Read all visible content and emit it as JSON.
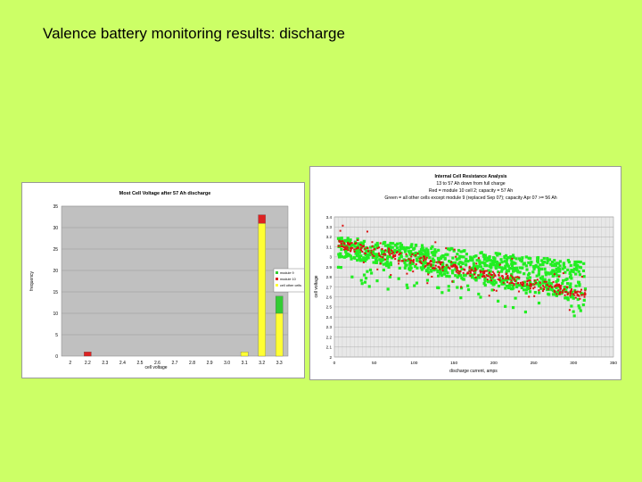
{
  "slide": {
    "title": "Valence battery monitoring results: discharge"
  },
  "chart_data": [
    {
      "type": "bar",
      "stacked": true,
      "title": "Most Cell Voltage after 57 Ah discharge",
      "xlabel": "cell voltage",
      "ylabel": "frequency",
      "categories": [
        "2",
        "2.2",
        "2.3",
        "2.4",
        "2.5",
        "2.6",
        "2.7",
        "2.8",
        "2.9",
        "3.0",
        "3.1",
        "3.2",
        "3.3"
      ],
      "ylim": [
        0,
        35
      ],
      "yticks": [
        "0",
        "5",
        "10",
        "15",
        "20",
        "25",
        "30",
        "35"
      ],
      "grid": true,
      "legend": "right",
      "series": [
        {
          "name": "cell other cells",
          "color": "#ffff33",
          "values": [
            0,
            0,
            0,
            0,
            0,
            0,
            0,
            0,
            0,
            0,
            1,
            31,
            10
          ]
        },
        {
          "name": "module 10",
          "color": "#dd2222",
          "values": [
            0,
            1,
            0,
            0,
            0,
            0,
            0,
            0,
            0,
            0,
            0,
            2,
            0
          ]
        },
        {
          "name": "module 9",
          "color": "#33cc33",
          "values": [
            0,
            0,
            0,
            0,
            0,
            0,
            0,
            0,
            0,
            0,
            0,
            0,
            4
          ]
        }
      ],
      "colors": {
        "plot_bg": "#c0c0c0",
        "frame_bg": "#ffffff"
      }
    },
    {
      "type": "scatter",
      "title_lines": [
        "Internal Cell Resistance Analysis",
        "13 to 57 Ah down from full charge",
        "Red = module 10 cell 2; capacity = 57 Ah",
        "Green = all other cells except module 9 (replaced Sep 07); capacity Apr 07 >= 56 Ah"
      ],
      "xlabel": "discharge current, amps",
      "ylabel": "cell voltage",
      "xlim": [
        0,
        350
      ],
      "ylim": [
        2.0,
        3.4
      ],
      "xticks": [
        "0",
        "50",
        "100",
        "150",
        "200",
        "250",
        "300",
        "350"
      ],
      "yticks": [
        "2",
        "2.1",
        "2.2",
        "2.3",
        "2.4",
        "2.5",
        "2.6",
        "2.7",
        "2.8",
        "2.9",
        "3",
        "3.1",
        "3.2",
        "3.3",
        "3.4"
      ],
      "grid": true,
      "series": [
        {
          "name": "Green",
          "color": "#22ee22",
          "x_range": [
            5,
            315
          ],
          "y_start": [
            3.0,
            3.2
          ],
          "y_end": [
            2.55,
            2.95
          ]
        },
        {
          "name": "Red",
          "color": "#dd1111",
          "x_range": [
            5,
            315
          ],
          "y_start": 3.13,
          "y_end": 2.62
        }
      ],
      "colors": {
        "plot_bg": "#e8e8e8",
        "frame_bg": "#ffffff"
      }
    }
  ]
}
